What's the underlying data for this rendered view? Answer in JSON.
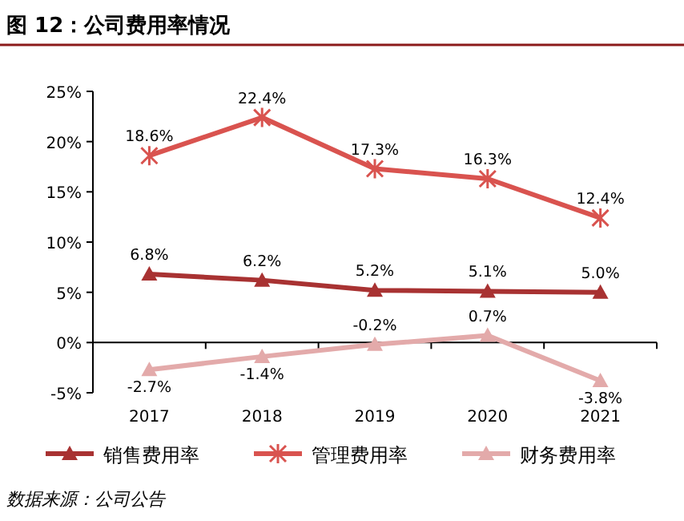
{
  "chart_data": {
    "type": "line",
    "title": "图 12：公司费用率情况",
    "categories": [
      "2017",
      "2018",
      "2019",
      "2020",
      "2021"
    ],
    "series": [
      {
        "name": "销售费用率",
        "color": "#a83232",
        "marker": "triangle",
        "values": [
          6.8,
          6.2,
          5.2,
          5.1,
          5.0
        ],
        "value_labels": [
          "6.8%",
          "6.2%",
          "5.2%",
          "5.1%",
          "5.0%"
        ]
      },
      {
        "name": "管理费用率",
        "color": "#d9534f",
        "marker": "cross",
        "values": [
          18.6,
          22.4,
          17.3,
          16.3,
          12.4
        ],
        "value_labels": [
          "18.6%",
          "22.4%",
          "17.3%",
          "16.3%",
          "12.4%"
        ]
      },
      {
        "name": "财务费用率",
        "color": "#e3aaaa",
        "marker": "triangle",
        "values": [
          -2.7,
          -1.4,
          -0.2,
          0.7,
          -3.8
        ],
        "value_labels": [
          "-2.7%",
          "-1.4%",
          "-0.2%",
          "0.7%",
          "-3.8%"
        ]
      }
    ],
    "ylim": [
      -5,
      25
    ],
    "yticks": [
      {
        "value": -5,
        "label": "-5%"
      },
      {
        "value": 0,
        "label": "0%"
      },
      {
        "value": 5,
        "label": "5%"
      },
      {
        "value": 10,
        "label": "10%"
      },
      {
        "value": 15,
        "label": "15%"
      },
      {
        "value": 20,
        "label": "20%"
      },
      {
        "value": 25,
        "label": "25%"
      }
    ],
    "legend": "bottom",
    "annotations": [
      "数据来源：公司公告"
    ]
  }
}
